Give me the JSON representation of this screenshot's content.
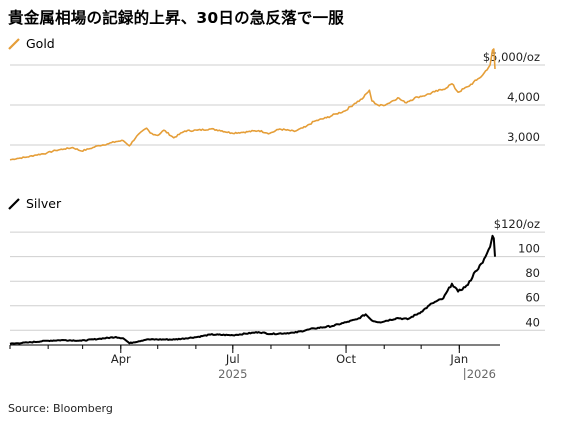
{
  "title": "貴金属相場の記録的上昇、30日の急反落で一服",
  "source": "Source: Bloomberg",
  "chart_data": [
    {
      "type": "line",
      "legend": "Gold",
      "color": "#e59e38",
      "ylim": [
        2500,
        5250
      ],
      "yticks": [
        {
          "value": 3000,
          "label": "3,000"
        },
        {
          "value": 4000,
          "label": "4,000"
        },
        {
          "value": 5000,
          "label": "$5,000/oz"
        }
      ],
      "series": [
        {
          "x": [
            "2025-01-01",
            "2025-01-07",
            "2025-01-15",
            "2025-01-22",
            "2025-01-31",
            "2025-02-07",
            "2025-02-14",
            "2025-02-21",
            "2025-02-28",
            "2025-03-07",
            "2025-03-14",
            "2025-03-21",
            "2025-03-28",
            "2025-04-03",
            "2025-04-08",
            "2025-04-14",
            "2025-04-22",
            "2025-04-25",
            "2025-05-01",
            "2025-05-06",
            "2025-05-14",
            "2025-05-23",
            "2025-06-02",
            "2025-06-13",
            "2025-06-20",
            "2025-06-30",
            "2025-07-10",
            "2025-07-22",
            "2025-07-31",
            "2025-08-08",
            "2025-08-20",
            "2025-08-29",
            "2025-09-05",
            "2025-09-15",
            "2025-09-23",
            "2025-09-30",
            "2025-10-08",
            "2025-10-14",
            "2025-10-20",
            "2025-10-22",
            "2025-10-28",
            "2025-11-03",
            "2025-11-12",
            "2025-11-18",
            "2025-11-28",
            "2025-12-05",
            "2025-12-12",
            "2025-12-19",
            "2025-12-26",
            "2025-12-31",
            "2026-01-08",
            "2026-01-15",
            "2026-01-20",
            "2026-01-26",
            "2026-01-28",
            "2026-01-29",
            "2026-01-30"
          ],
          "y": [
            2630,
            2665,
            2700,
            2750,
            2800,
            2865,
            2900,
            2935,
            2850,
            2910,
            2985,
            3025,
            3085,
            3110,
            2980,
            3225,
            3420,
            3300,
            3240,
            3370,
            3180,
            3350,
            3370,
            3400,
            3370,
            3300,
            3320,
            3360,
            3290,
            3400,
            3340,
            3450,
            3590,
            3680,
            3780,
            3850,
            4040,
            4150,
            4370,
            4100,
            3980,
            4020,
            4180,
            4060,
            4200,
            4250,
            4330,
            4390,
            4530,
            4320,
            4460,
            4620,
            4750,
            5000,
            5370,
            5400,
            4900
          ]
        }
      ]
    },
    {
      "type": "line",
      "legend": "Silver",
      "color": "#000000",
      "ylim": [
        28,
        125
      ],
      "yticks": [
        {
          "value": 40,
          "label": "40"
        },
        {
          "value": 60,
          "label": "60"
        },
        {
          "value": 80,
          "label": "80"
        },
        {
          "value": 100,
          "label": "100"
        },
        {
          "value": 120,
          "label": "$120/oz"
        }
      ],
      "series": [
        {
          "x": [
            "2025-01-01",
            "2025-01-15",
            "2025-02-01",
            "2025-02-14",
            "2025-02-28",
            "2025-03-14",
            "2025-03-28",
            "2025-04-03",
            "2025-04-08",
            "2025-04-22",
            "2025-05-15",
            "2025-06-02",
            "2025-06-13",
            "2025-07-01",
            "2025-07-22",
            "2025-08-01",
            "2025-08-20",
            "2025-09-05",
            "2025-09-20",
            "2025-10-01",
            "2025-10-10",
            "2025-10-17",
            "2025-10-22",
            "2025-10-28",
            "2025-11-12",
            "2025-11-20",
            "2025-12-01",
            "2025-12-10",
            "2025-12-19",
            "2025-12-26",
            "2025-12-31",
            "2026-01-08",
            "2026-01-14",
            "2026-01-20",
            "2026-01-26",
            "2026-01-28",
            "2026-01-29",
            "2026-01-30"
          ],
          "y": [
            29,
            30,
            31.5,
            32,
            31.5,
            33,
            34.5,
            33.5,
            29.5,
            32.5,
            32.5,
            34.5,
            36.5,
            36,
            38.5,
            37,
            38,
            41.5,
            43.5,
            46.5,
            49,
            53,
            48,
            46.5,
            50,
            49,
            55,
            62,
            66,
            78,
            71.5,
            77,
            88,
            95,
            108,
            117,
            115,
            100
          ]
        }
      ]
    }
  ],
  "x_axis": {
    "ticks": [
      {
        "date": "2025-04-01",
        "label": "Apr"
      },
      {
        "date": "2025-07-01",
        "label": "Jul"
      },
      {
        "date": "2025-10-01",
        "label": "Oct"
      },
      {
        "date": "2026-01-01",
        "label": "Jan"
      }
    ],
    "years": [
      {
        "date": "2025-07-01",
        "label": "2025"
      },
      {
        "date": "2026-01-20",
        "label": "2026"
      }
    ]
  }
}
